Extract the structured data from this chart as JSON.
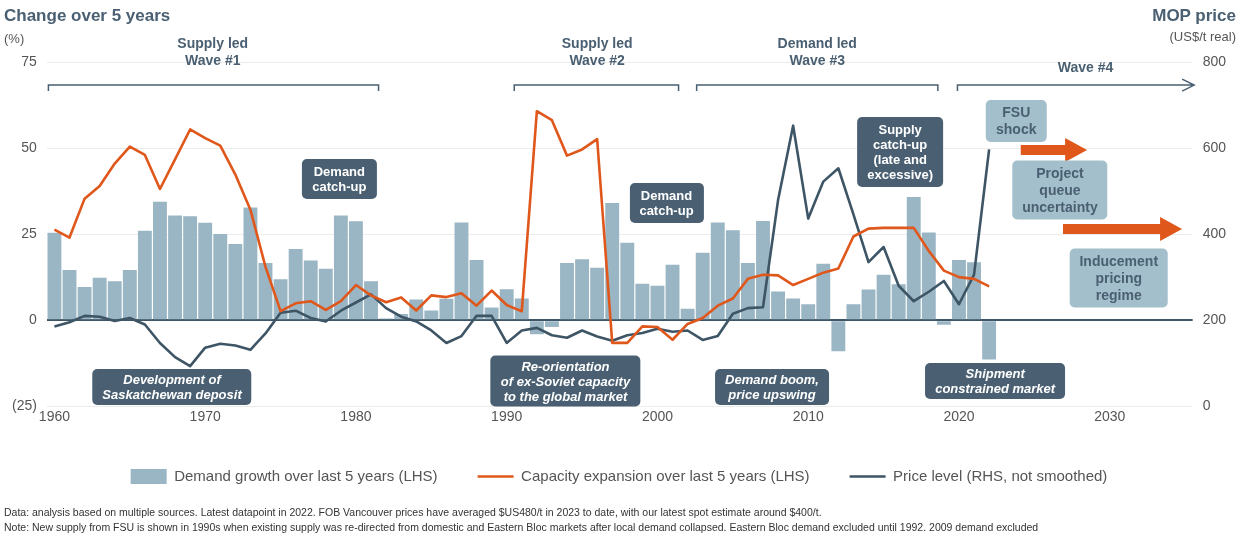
{
  "chart_data": {
    "type": "bar",
    "title": "Change over 5 years",
    "ylabel": "(%)",
    "y2label": "MOP price\n(US$/t real)",
    "x": [
      1960,
      1961,
      1962,
      1963,
      1964,
      1965,
      1966,
      1967,
      1968,
      1969,
      1970,
      1971,
      1972,
      1973,
      1974,
      1975,
      1976,
      1977,
      1978,
      1979,
      1980,
      1981,
      1982,
      1983,
      1984,
      1985,
      1986,
      1987,
      1988,
      1989,
      1990,
      1991,
      1992,
      1993,
      1994,
      1995,
      1996,
      1997,
      1998,
      1999,
      2000,
      2001,
      2002,
      2003,
      2004,
      2005,
      2006,
      2007,
      2008,
      2009,
      2010,
      2011,
      2012,
      2013,
      2014,
      2015,
      2016,
      2017,
      2018,
      2019,
      2020,
      2021,
      2022
    ],
    "series": [
      {
        "name": "Demand growth over last 5 years (LHS)",
        "color": "#9ab5c3",
        "values": [
          25.4,
          14.6,
          9.6,
          12.3,
          11.3,
          14.6,
          26,
          34.4,
          30.4,
          30.2,
          28.3,
          25,
          22.1,
          32.7,
          16.6,
          11.9,
          20.7,
          17.3,
          14.9,
          30.4,
          28.7,
          11.3,
          0.5,
          1.8,
          6.0,
          2.8,
          6.2,
          28.4,
          17.5,
          3.7,
          9.0,
          6.3,
          -4.1,
          -2.0,
          16.6,
          17.7,
          15.2,
          34.0,
          22.5,
          10.6,
          10.0,
          16.1,
          3.3,
          19.6,
          28.4,
          26.1,
          16.6,
          28.8,
          8.3,
          6.3,
          4.6,
          16.4,
          -9.0,
          4.6,
          8.9,
          13.2,
          10.4,
          35.8,
          25.5,
          -1.3,
          17.5,
          16.8,
          -11.4
        ]
      },
      {
        "name": "Capacity expansion over last 5 years (LHS)",
        "type": "line",
        "color": "#e0571b",
        "values": [
          26.3,
          24,
          35.3,
          39,
          45.5,
          50.4,
          48,
          38.1,
          46.7,
          55.4,
          52.9,
          50.7,
          42.3,
          32.1,
          15.5,
          2.6,
          4.9,
          5.5,
          3.0,
          5.5,
          10.2,
          7.2,
          5.2,
          6.6,
          2.8,
          7.2,
          6.7,
          7.8,
          4.2,
          8.6,
          4.4,
          2.6,
          60.7,
          58.1,
          47.8,
          49.6,
          52.6,
          -6.6,
          -6.6,
          -1.8,
          -2.0,
          -5.7,
          -1.1,
          0.6,
          4.2,
          6.3,
          12,
          13.2,
          13.0,
          10.2,
          12,
          13.8,
          15.0,
          24.3,
          26.6,
          26.8,
          26.8,
          26.8,
          20.1,
          14.4,
          12.5,
          12,
          9.8
        ]
      },
      {
        "name": "Price level (RHS, not smoothed)",
        "type": "line",
        "axis": "y2",
        "color": "#3e5566",
        "values": [
          185,
          195,
          210,
          208,
          198,
          205,
          190,
          147,
          114,
          93,
          136,
          145,
          141,
          131,
          169,
          217,
          222,
          205,
          197,
          222,
          241,
          260,
          228,
          208,
          197,
          176,
          147,
          163,
          210,
          210,
          147,
          176,
          182,
          165,
          159,
          176,
          162,
          152,
          165,
          170,
          180,
          173,
          176,
          154,
          163,
          215,
          228,
          230,
          479,
          652,
          436,
          522,
          553,
          446,
          335,
          370,
          280,
          244,
          266,
          291,
          237,
          306,
          597
        ]
      }
    ],
    "xlim": [
      1959.5,
      2035.5
    ],
    "xticks": [
      1960,
      1970,
      1980,
      1990,
      2000,
      2010,
      2020,
      2030
    ],
    "ylim": [
      -25,
      75
    ],
    "yticks": [
      {
        "value": -25,
        "label": "(25)"
      },
      0,
      25,
      50,
      75
    ],
    "y2lim": [
      0,
      800
    ],
    "y2ticks": [
      0,
      200,
      400,
      600,
      800
    ],
    "grid": "y",
    "legend": "bottom",
    "marker": "none",
    "line_style": "solid",
    "annotations": [
      "Supply led\nWave #1",
      "Supply led\nWave #2",
      "Demand led\nWave #3",
      "Wave #4",
      "Demand\ncatch-up",
      "Demand\ncatch-up",
      "Supply\ncatch-up\n(late and\nexcessive)",
      "FSU\nshock",
      "Project\nqueue\nuncertainty",
      "Inducement\npricing\nregime",
      "Development of\nSaskatchewan deposit",
      "Re-orientation\nof ex-Soviet capacity\nto the global market",
      "Demand boom,\nprice upswing",
      "Shipment\nconstrained market",
      "Data: analysis based on multiple sources. Latest datapoint in 2022. FOB Vancouver prices have averaged $US480/t in 2023 to date, with our latest spot estimate around $400/t.",
      "Note: New supply from FSU is shown in 1990s when existing supply was re-directed from domestic and Eastern Bloc markets after local demand collapsed. Eastern Bloc demand excluded until 1992. 2009 demand excluded"
    ]
  }
}
